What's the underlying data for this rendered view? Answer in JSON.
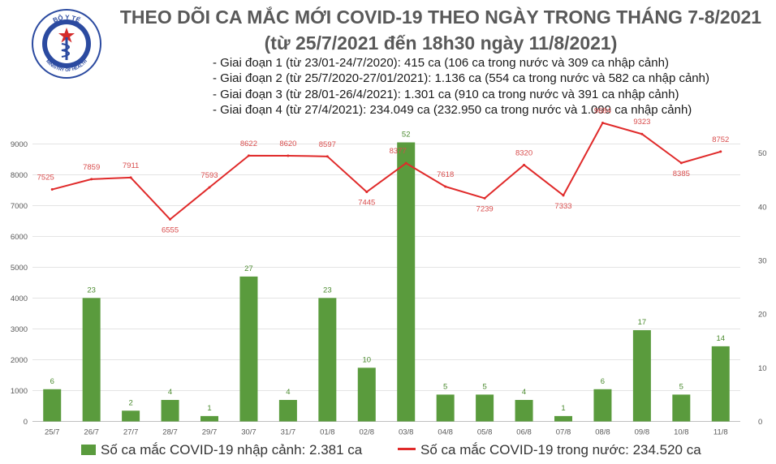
{
  "header": {
    "logo_text_top": "BỘ Y TẾ",
    "logo_text_bottom": "MINISTRY OF HEALTH",
    "title_line1": "THEO DÕI CA MẮC MỚI COVID-19 THEO NGÀY TRONG THÁNG 7-8/2021",
    "title_line2": "(từ 25/7/2021 đến 18h30 ngày 11/8/2021)"
  },
  "stages": [
    "- Giai đoạn 1 (từ 23/01-24/7/2020): 415 ca (106 ca trong nước và 309 ca nhập cảnh)",
    "- Giai đoạn 2 (từ 25/7/2020-27/01/2021): 1.136 ca (554 ca trong nước và 582 ca nhập cảnh)",
    "- Giai đoạn 3 (từ 28/01-26/4/2021): 1.301 ca (910 ca trong nước và 391 ca nhập cảnh)",
    "- Giai đoạn 4 (từ 27/4/2021): 234.049 ca (232.950 ca trong nước và 1.099 ca nhập cảnh)"
  ],
  "colors": {
    "bar": "#5a9b3d",
    "line": "#e02a2a",
    "bar_label": "#4a8a2e",
    "grid": "#e4e4e4"
  },
  "chart_data": {
    "type": "bar+line",
    "categories": [
      "25/7",
      "26/7",
      "27/7",
      "28/7",
      "29/7",
      "30/7",
      "31/7",
      "01/8",
      "02/8",
      "03/8",
      "04/8",
      "05/8",
      "06/8",
      "07/8",
      "08/8",
      "09/8",
      "10/8",
      "11/8"
    ],
    "series": [
      {
        "name": "Số ca mắc COVID-19 nhập cảnh: 2.381 ca",
        "type": "bar",
        "axis": "right",
        "values": [
          6,
          23,
          2,
          4,
          1,
          27,
          4,
          23,
          10,
          52,
          5,
          5,
          4,
          1,
          6,
          17,
          5,
          14
        ]
      },
      {
        "name": "Số ca mắc COVID-19 trong nước: 234.520 ca",
        "type": "line",
        "axis": "left",
        "values": [
          7525,
          7859,
          7911,
          6555,
          7593,
          8622,
          8620,
          8597,
          7445,
          8377,
          7618,
          7239,
          8320,
          7333,
          9684,
          9323,
          8385,
          8752
        ]
      }
    ],
    "left_axis": {
      "ylim": [
        0,
        9000
      ],
      "ticks": [
        "0",
        "1000",
        "2000",
        "3000",
        "4000",
        "5000",
        "6000",
        "7000",
        "8000",
        "9000"
      ]
    },
    "right_axis": {
      "ylim": [
        0,
        51.7
      ],
      "ticks": [
        "0",
        "10",
        "20",
        "30",
        "40",
        "50"
      ]
    },
    "grid": true,
    "legend_position": "bottom"
  }
}
